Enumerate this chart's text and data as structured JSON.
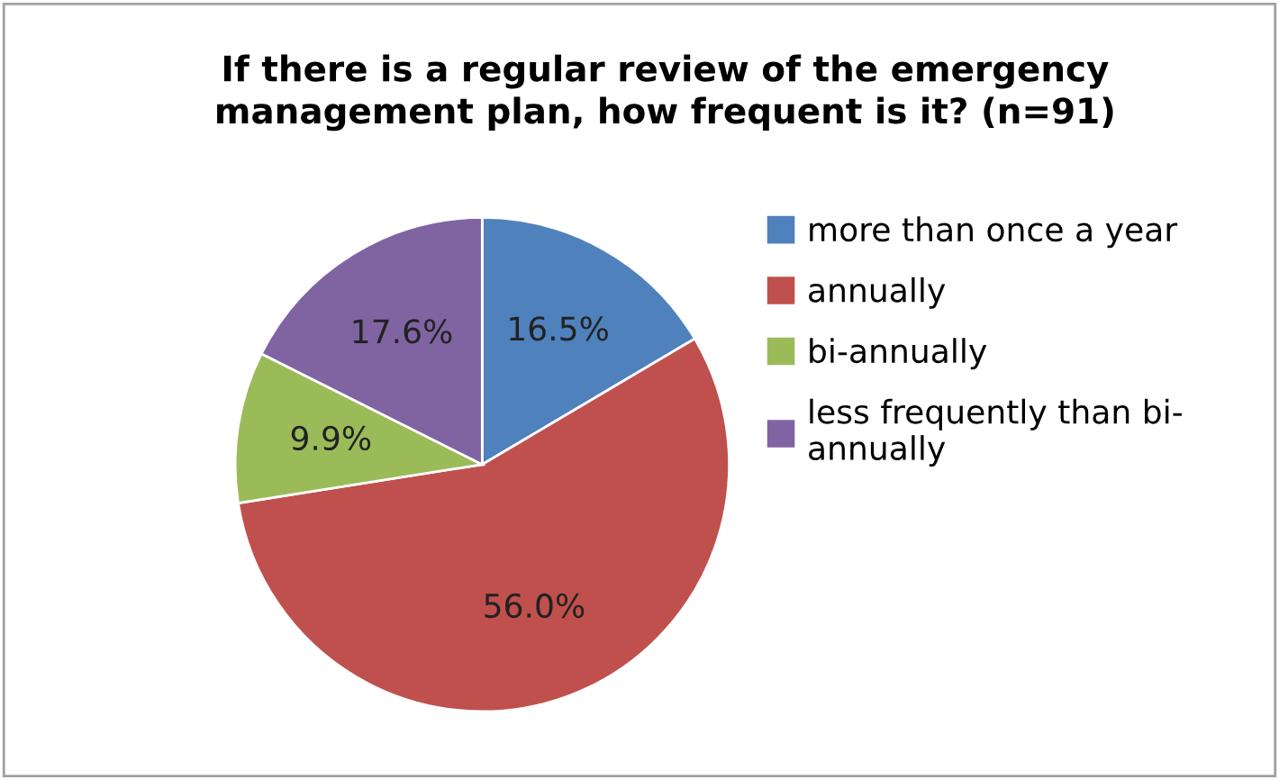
{
  "chart_data": {
    "type": "pie",
    "title": "If there is a regular review of the emergency\nmanagement plan, how frequent is it? (n=91)",
    "categories": [
      "more than once a year",
      "annually",
      "bi-annually",
      "less frequently than bi-\nannually"
    ],
    "values": [
      16.5,
      56.0,
      9.9,
      17.6
    ],
    "value_labels": [
      "16.5%",
      "56.0%",
      "9.9%",
      "17.6%"
    ],
    "colors": [
      "#4f81bd",
      "#c0504d",
      "#9bbb59",
      "#8064a2"
    ],
    "legend": "right"
  }
}
